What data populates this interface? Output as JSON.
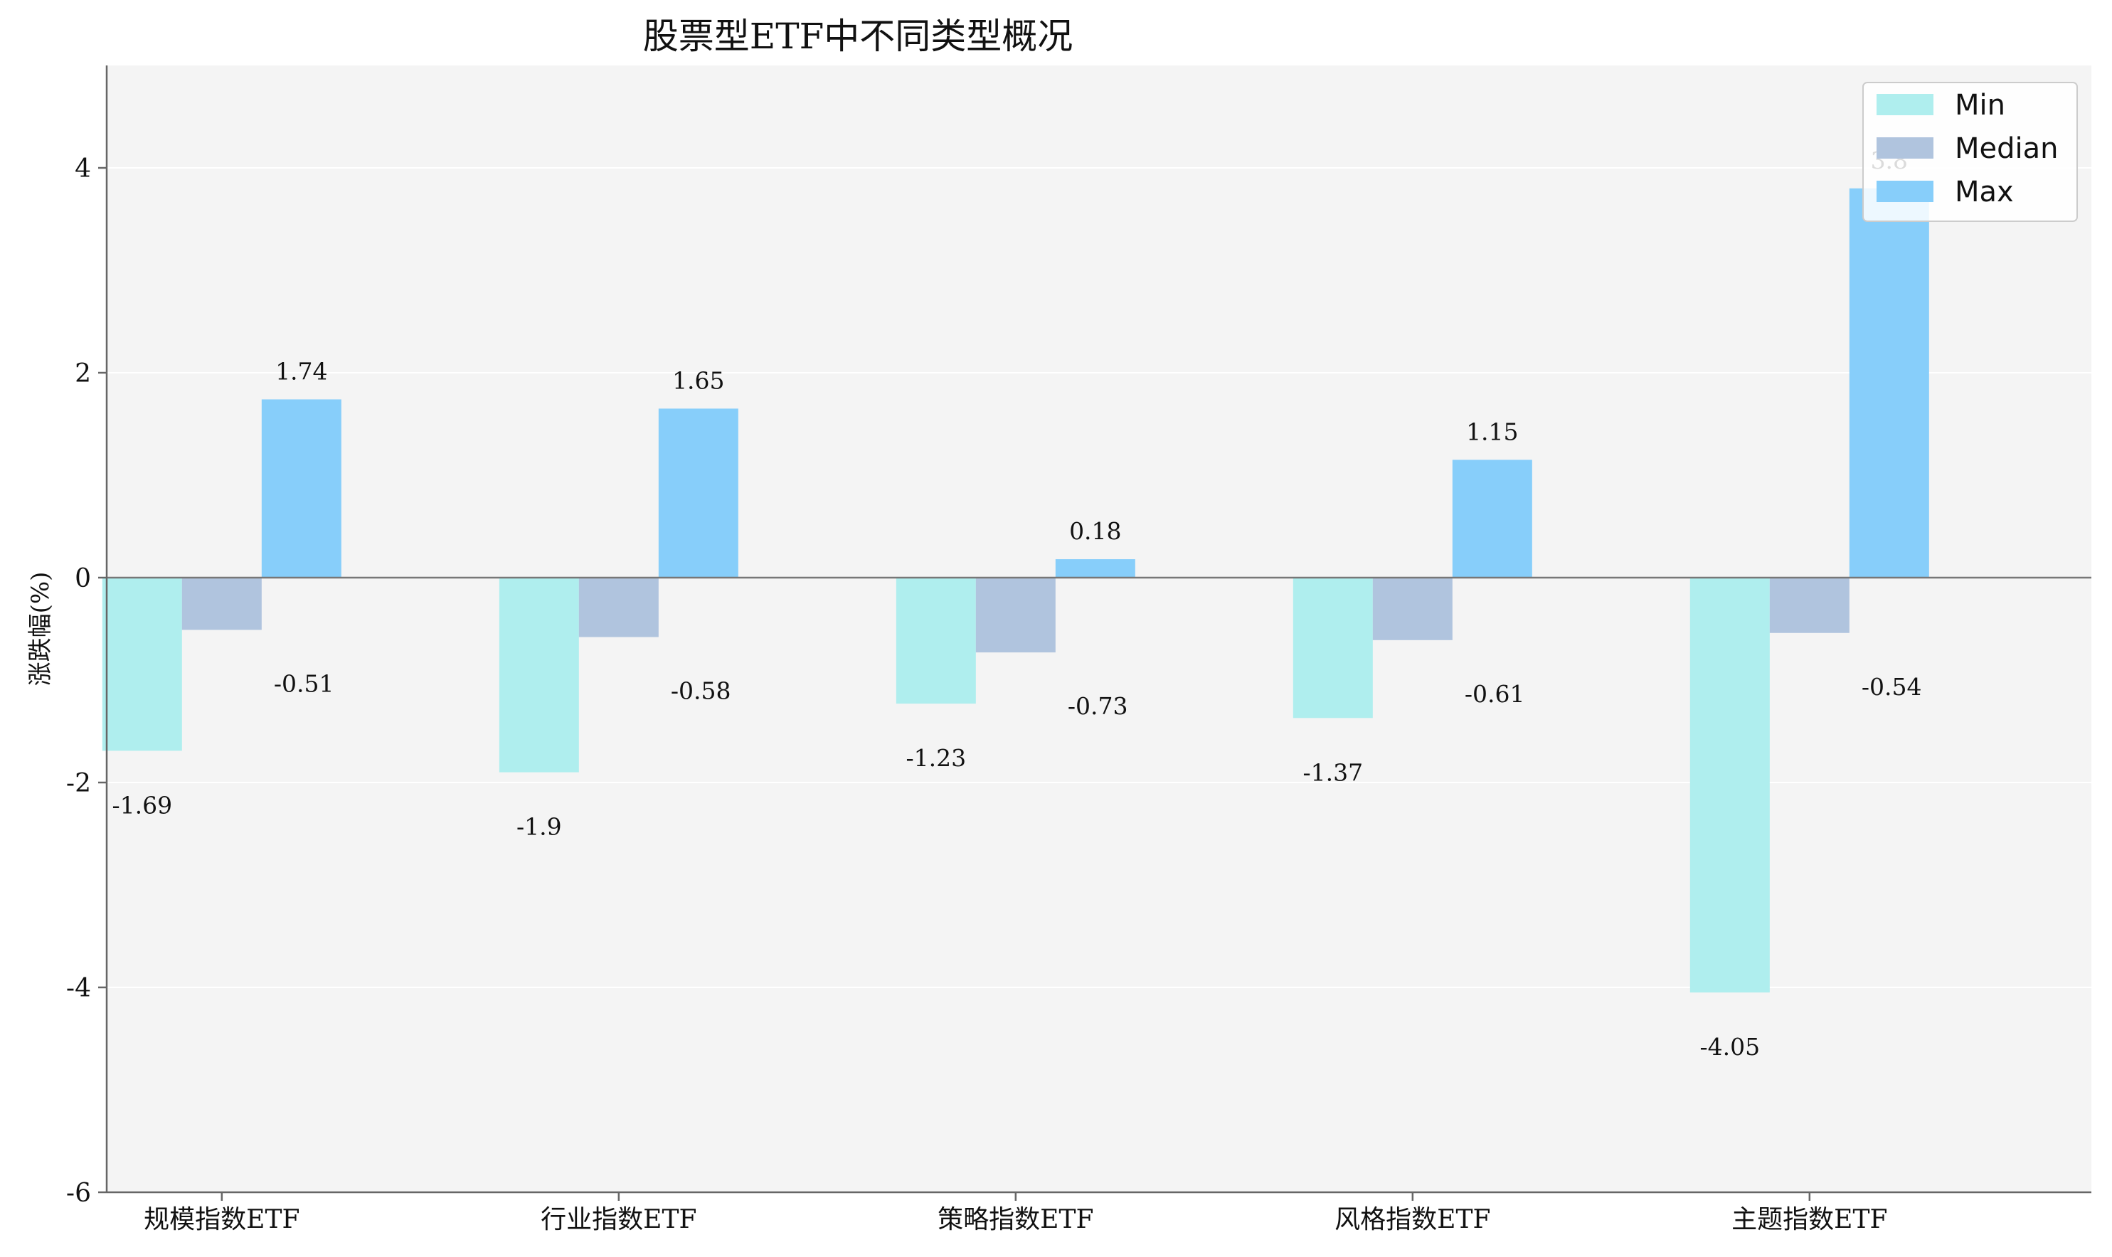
{
  "chart_data": {
    "type": "bar",
    "title": "股票型ETF中不同类型概况",
    "xlabel": "",
    "ylabel": "涨跌幅(%)",
    "ylim": [
      -6,
      5
    ],
    "yticks": [
      -6,
      -4,
      -2,
      0,
      2,
      4
    ],
    "categories": [
      "规模指数ETF",
      "行业指数ETF",
      "策略指数ETF",
      "风格指数ETF",
      "主题指数ETF"
    ],
    "series": [
      {
        "name": "Min",
        "color": "#afeeee",
        "values": [
          -1.69,
          -1.9,
          -1.23,
          -1.37,
          -4.05
        ]
      },
      {
        "name": "Median",
        "color": "#b0c4de",
        "values": [
          -0.51,
          -0.58,
          -0.73,
          -0.61,
          -0.54
        ]
      },
      {
        "name": "Max",
        "color": "#87cefa",
        "values": [
          1.74,
          1.65,
          0.18,
          1.15,
          3.8
        ]
      }
    ],
    "data_labels": {
      "Min": [
        "-1.69",
        "-1.9",
        "-1.23",
        "-1.37",
        "-4.05"
      ],
      "Median": [
        "-0.51",
        "-0.58",
        "-0.73",
        "-0.61",
        "-0.54"
      ],
      "Max": [
        "1.74",
        "1.65",
        "0.18",
        "1.15",
        "3.8"
      ]
    },
    "grid": true,
    "zero_line": true,
    "legend": "top-right",
    "background": "#f4f4f4"
  }
}
